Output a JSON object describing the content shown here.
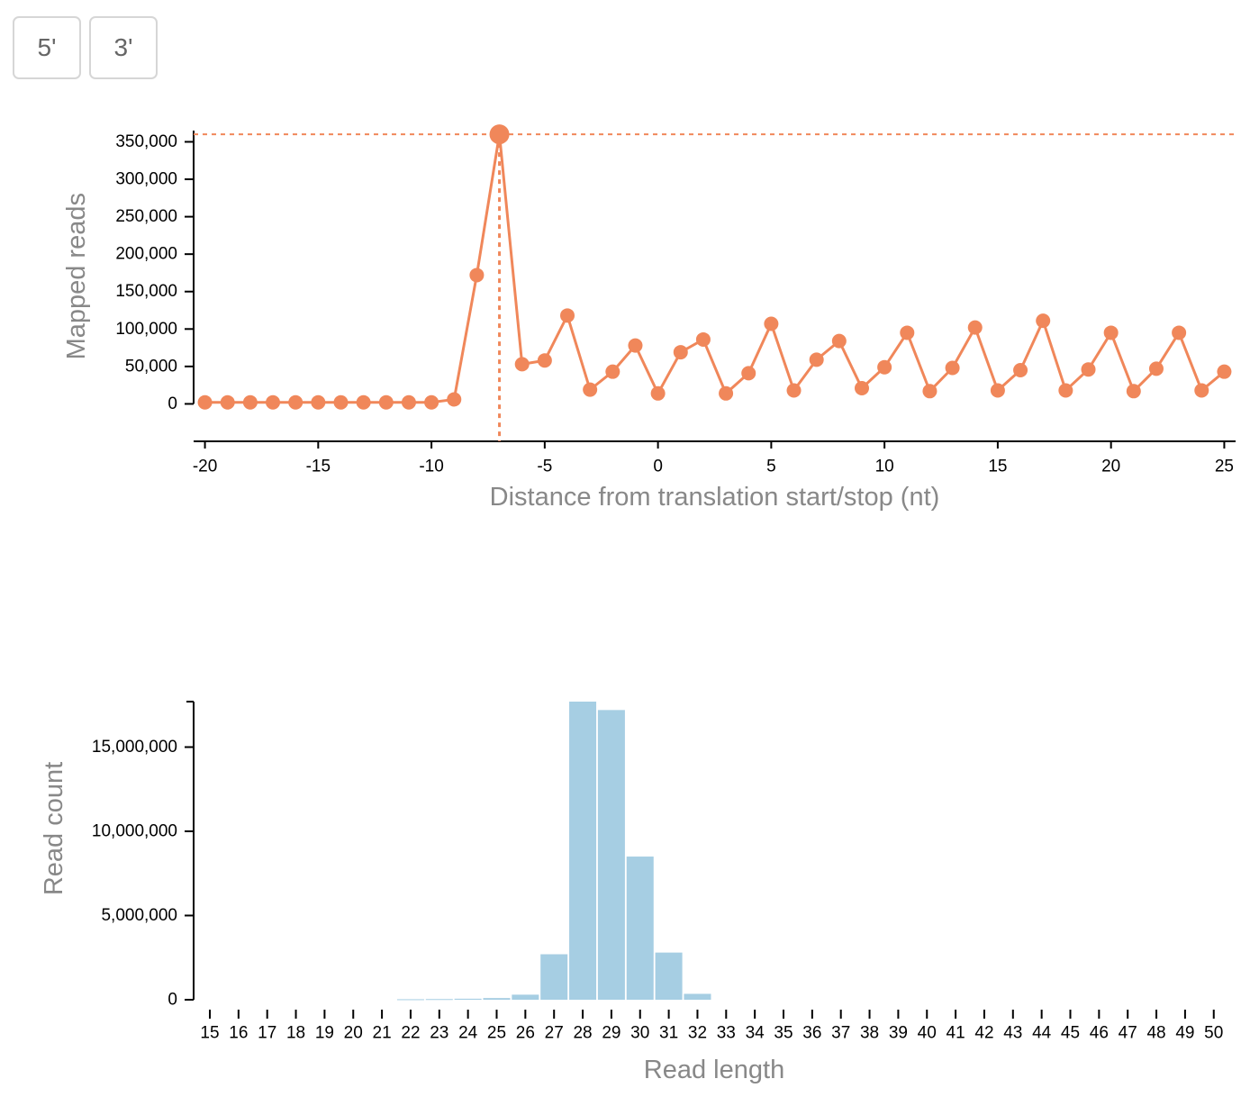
{
  "buttons": {
    "five_prime": "5'",
    "three_prime": "3'"
  },
  "colors": {
    "line": "#f0875a",
    "bar": "#a6cee3",
    "axis": "#000000",
    "axis_title": "#888888"
  },
  "chart_data": [
    {
      "type": "line",
      "xlabel": "Distance from translation start/stop (nt)",
      "ylabel": "Mapped reads",
      "xlim": [
        -20.5,
        25.5
      ],
      "ylim": [
        -50000,
        365000
      ],
      "x_ticks": [
        -20,
        -15,
        -10,
        -5,
        0,
        5,
        10,
        15,
        20,
        25
      ],
      "y_ticks": [
        0,
        50000,
        100000,
        150000,
        200000,
        250000,
        300000,
        350000
      ],
      "x_tick_labels": [
        "-20",
        "-15",
        "-10",
        "-5",
        "0",
        "5",
        "10",
        "15",
        "20",
        "25"
      ],
      "y_tick_labels": [
        "0",
        "50,000",
        "100,000",
        "150,000",
        "200,000",
        "250,000",
        "300,000",
        "350,000"
      ],
      "highlight": {
        "x": -7,
        "y": 360000
      },
      "x": [
        -20,
        -19,
        -18,
        -17,
        -16,
        -15,
        -14,
        -13,
        -12,
        -11,
        -10,
        -9,
        -8,
        -7,
        -6,
        -5,
        -4,
        -3,
        -2,
        -1,
        0,
        1,
        2,
        3,
        4,
        5,
        6,
        7,
        8,
        9,
        10,
        11,
        12,
        13,
        14,
        15,
        16,
        17,
        18,
        19,
        20,
        21,
        22,
        23,
        24,
        25
      ],
      "y": [
        2000,
        2000,
        2000,
        2000,
        2000,
        2000,
        2000,
        2000,
        2000,
        2000,
        2000,
        6000,
        172000,
        360000,
        53000,
        58000,
        118000,
        19000,
        43000,
        78000,
        14000,
        69000,
        86000,
        14000,
        41000,
        107000,
        18000,
        59000,
        84000,
        21000,
        49000,
        95000,
        17000,
        48000,
        102000,
        18000,
        45000,
        111000,
        18000,
        46000,
        95000,
        17000,
        47000,
        95000,
        18000,
        43000
      ]
    },
    {
      "type": "bar",
      "xlabel": "Read length",
      "ylabel": "Read count",
      "ylim": [
        0,
        17700000
      ],
      "y_ticks": [
        0,
        5000000,
        10000000,
        15000000
      ],
      "y_tick_labels": [
        "0",
        "5,000,000",
        "10,000,000",
        "15,000,000"
      ],
      "categories": [
        "15",
        "16",
        "17",
        "18",
        "19",
        "20",
        "21",
        "22",
        "23",
        "24",
        "25",
        "26",
        "27",
        "28",
        "29",
        "30",
        "31",
        "32",
        "33",
        "34",
        "35",
        "36",
        "37",
        "38",
        "39",
        "40",
        "41",
        "42",
        "43",
        "44",
        "45",
        "46",
        "47",
        "48",
        "49",
        "50"
      ],
      "values": [
        0,
        0,
        0,
        0,
        0,
        0,
        0,
        30000,
        40000,
        60000,
        100000,
        300000,
        2700000,
        17700000,
        17200000,
        8500000,
        2800000,
        350000,
        0,
        0,
        0,
        0,
        0,
        0,
        0,
        0,
        0,
        0,
        0,
        0,
        0,
        0,
        0,
        0,
        0,
        0
      ]
    }
  ]
}
